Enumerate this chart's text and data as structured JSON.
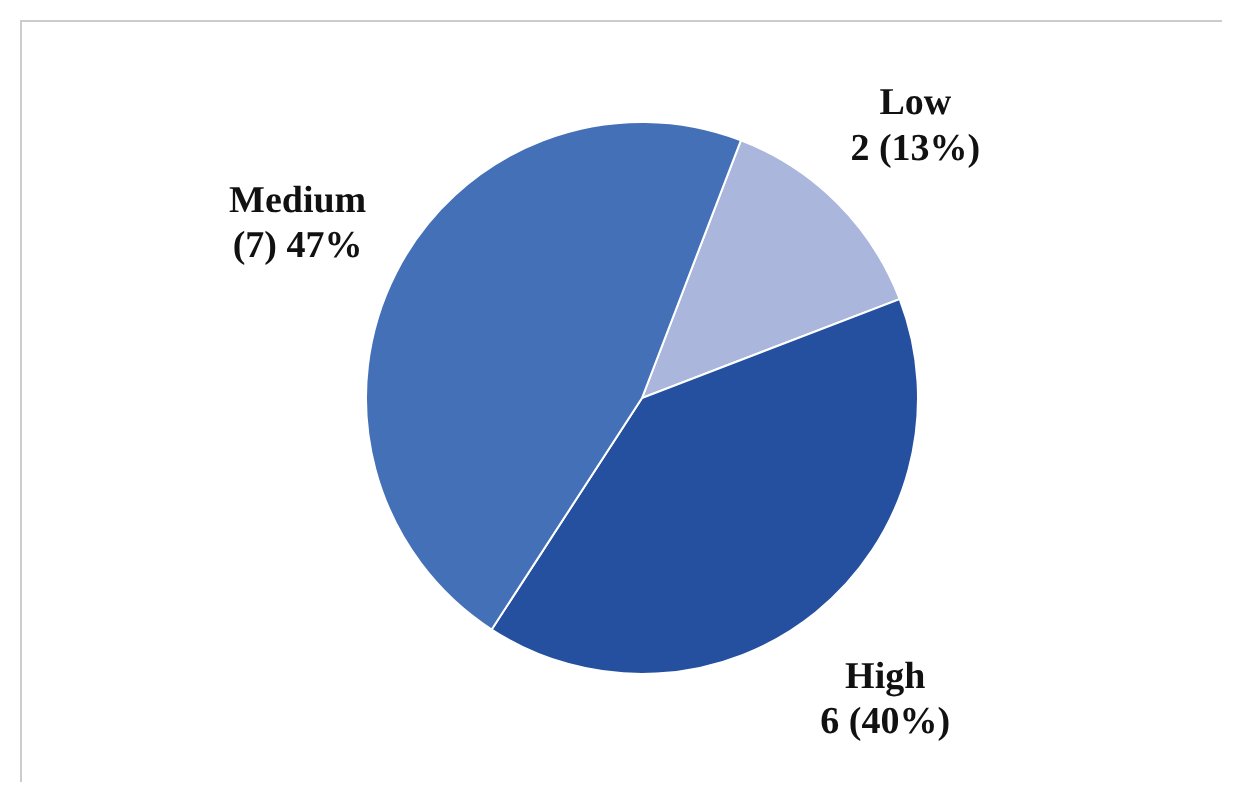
{
  "chart_data": {
    "type": "pie",
    "categories": [
      "Low",
      "High",
      "Medium"
    ],
    "values": [
      2,
      6,
      7
    ],
    "value_labels": [
      "2 (13%)",
      "6 (40%)",
      "(7) 47%"
    ],
    "colors": [
      "#aab6dc",
      "#2550a0",
      "#4470b8"
    ],
    "legend": false
  }
}
